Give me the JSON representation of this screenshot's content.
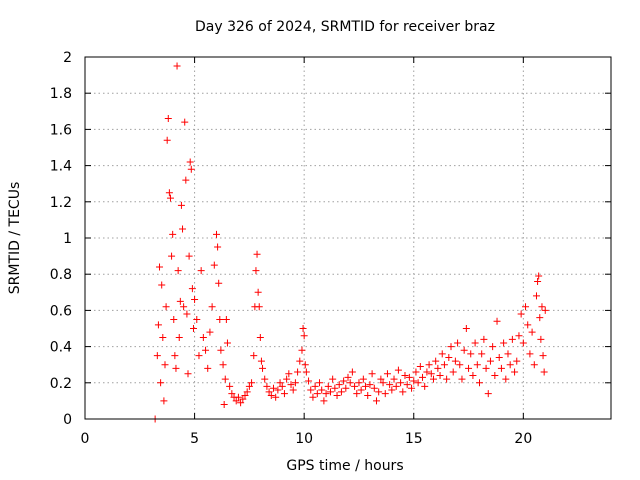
{
  "chart_data": {
    "type": "scatter",
    "title": "Day 326 of 2024, SRMTID for receiver braz",
    "xlabel": "GPS time / hours",
    "ylabel": "SRMTID / TECUs",
    "xlim": [
      0,
      24
    ],
    "ylim": [
      0,
      2
    ],
    "xticks": [
      0,
      5,
      10,
      15,
      20
    ],
    "xtick_labels": [
      "0",
      "5",
      "10",
      "15",
      "20"
    ],
    "yticks": [
      0,
      0.2,
      0.4,
      0.6,
      0.8,
      1,
      1.2,
      1.4,
      1.6,
      1.8,
      2
    ],
    "ytick_labels": [
      "0",
      "0.2",
      "0.4",
      "0.6",
      "0.8",
      "1",
      "1.2",
      "1.4",
      "1.6",
      "1.8",
      "2"
    ],
    "grid": true,
    "marker": "plus",
    "color": "#ff0000",
    "series": [
      {
        "name": "SRMTID",
        "points": [
          [
            3.2,
            0.0
          ],
          [
            3.3,
            0.35
          ],
          [
            3.35,
            0.52
          ],
          [
            3.4,
            0.84
          ],
          [
            3.45,
            0.2
          ],
          [
            3.5,
            0.74
          ],
          [
            3.55,
            0.45
          ],
          [
            3.6,
            0.1
          ],
          [
            3.65,
            0.3
          ],
          [
            3.7,
            0.62
          ],
          [
            3.75,
            1.54
          ],
          [
            3.8,
            1.66
          ],
          [
            3.85,
            1.25
          ],
          [
            3.9,
            1.22
          ],
          [
            3.95,
            0.9
          ],
          [
            4.0,
            1.02
          ],
          [
            4.05,
            0.55
          ],
          [
            4.1,
            0.35
          ],
          [
            4.15,
            0.28
          ],
          [
            4.2,
            1.95
          ],
          [
            4.25,
            0.82
          ],
          [
            4.3,
            0.45
          ],
          [
            4.35,
            0.65
          ],
          [
            4.4,
            1.18
          ],
          [
            4.45,
            1.05
          ],
          [
            4.5,
            0.62
          ],
          [
            4.55,
            1.64
          ],
          [
            4.6,
            1.32
          ],
          [
            4.65,
            0.58
          ],
          [
            4.7,
            0.25
          ],
          [
            4.75,
            0.9
          ],
          [
            4.8,
            1.42
          ],
          [
            4.85,
            1.38
          ],
          [
            4.9,
            0.72
          ],
          [
            4.95,
            0.5
          ],
          [
            5.0,
            0.66
          ],
          [
            5.1,
            0.55
          ],
          [
            5.2,
            0.35
          ],
          [
            5.3,
            0.82
          ],
          [
            5.4,
            0.45
          ],
          [
            5.5,
            0.38
          ],
          [
            5.6,
            0.28
          ],
          [
            5.7,
            0.48
          ],
          [
            5.8,
            0.62
          ],
          [
            5.9,
            0.85
          ],
          [
            6.0,
            1.02
          ],
          [
            6.05,
            0.95
          ],
          [
            6.1,
            0.75
          ],
          [
            6.15,
            0.55
          ],
          [
            6.2,
            0.38
          ],
          [
            6.3,
            0.3
          ],
          [
            6.35,
            0.08
          ],
          [
            6.4,
            0.22
          ],
          [
            6.45,
            0.55
          ],
          [
            6.5,
            0.42
          ],
          [
            6.6,
            0.18
          ],
          [
            6.7,
            0.14
          ],
          [
            6.8,
            0.12
          ],
          [
            6.9,
            0.1
          ],
          [
            7.0,
            0.12
          ],
          [
            7.1,
            0.09
          ],
          [
            7.2,
            0.11
          ],
          [
            7.3,
            0.13
          ],
          [
            7.4,
            0.15
          ],
          [
            7.5,
            0.18
          ],
          [
            7.6,
            0.2
          ],
          [
            7.7,
            0.35
          ],
          [
            7.75,
            0.62
          ],
          [
            7.8,
            0.82
          ],
          [
            7.85,
            0.91
          ],
          [
            7.9,
            0.7
          ],
          [
            7.95,
            0.62
          ],
          [
            8.0,
            0.45
          ],
          [
            8.05,
            0.32
          ],
          [
            8.1,
            0.28
          ],
          [
            8.2,
            0.22
          ],
          [
            8.3,
            0.18
          ],
          [
            8.4,
            0.15
          ],
          [
            8.5,
            0.13
          ],
          [
            8.6,
            0.17
          ],
          [
            8.7,
            0.12
          ],
          [
            8.8,
            0.16
          ],
          [
            8.9,
            0.2
          ],
          [
            9.0,
            0.18
          ],
          [
            9.1,
            0.14
          ],
          [
            9.2,
            0.22
          ],
          [
            9.3,
            0.25
          ],
          [
            9.4,
            0.19
          ],
          [
            9.5,
            0.16
          ],
          [
            9.6,
            0.2
          ],
          [
            9.7,
            0.26
          ],
          [
            9.8,
            0.32
          ],
          [
            9.9,
            0.38
          ],
          [
            9.95,
            0.5
          ],
          [
            10.0,
            0.46
          ],
          [
            10.05,
            0.3
          ],
          [
            10.1,
            0.26
          ],
          [
            10.2,
            0.21
          ],
          [
            10.3,
            0.16
          ],
          [
            10.4,
            0.12
          ],
          [
            10.5,
            0.18
          ],
          [
            10.6,
            0.14
          ],
          [
            10.7,
            0.2
          ],
          [
            10.8,
            0.16
          ],
          [
            10.9,
            0.1
          ],
          [
            11.0,
            0.14
          ],
          [
            11.1,
            0.18
          ],
          [
            11.2,
            0.15
          ],
          [
            11.3,
            0.22
          ],
          [
            11.4,
            0.17
          ],
          [
            11.5,
            0.13
          ],
          [
            11.6,
            0.19
          ],
          [
            11.7,
            0.15
          ],
          [
            11.8,
            0.21
          ],
          [
            11.9,
            0.17
          ],
          [
            12.0,
            0.23
          ],
          [
            12.1,
            0.2
          ],
          [
            12.2,
            0.26
          ],
          [
            12.3,
            0.18
          ],
          [
            12.4,
            0.14
          ],
          [
            12.5,
            0.2
          ],
          [
            12.6,
            0.16
          ],
          [
            12.7,
            0.22
          ],
          [
            12.8,
            0.18
          ],
          [
            12.9,
            0.13
          ],
          [
            13.0,
            0.19
          ],
          [
            13.1,
            0.25
          ],
          [
            13.2,
            0.17
          ],
          [
            13.3,
            0.1
          ],
          [
            13.4,
            0.15
          ],
          [
            13.5,
            0.22
          ],
          [
            13.6,
            0.2
          ],
          [
            13.7,
            0.14
          ],
          [
            13.8,
            0.25
          ],
          [
            13.9,
            0.19
          ],
          [
            14.0,
            0.16
          ],
          [
            14.1,
            0.22
          ],
          [
            14.2,
            0.18
          ],
          [
            14.3,
            0.27
          ],
          [
            14.4,
            0.2
          ],
          [
            14.5,
            0.15
          ],
          [
            14.6,
            0.24
          ],
          [
            14.7,
            0.19
          ],
          [
            14.8,
            0.23
          ],
          [
            14.9,
            0.17
          ],
          [
            15.0,
            0.21
          ],
          [
            15.1,
            0.26
          ],
          [
            15.2,
            0.2
          ],
          [
            15.3,
            0.29
          ],
          [
            15.4,
            0.23
          ],
          [
            15.5,
            0.18
          ],
          [
            15.6,
            0.26
          ],
          [
            15.7,
            0.3
          ],
          [
            15.8,
            0.25
          ],
          [
            15.9,
            0.22
          ],
          [
            16.0,
            0.32
          ],
          [
            16.1,
            0.28
          ],
          [
            16.2,
            0.24
          ],
          [
            16.3,
            0.36
          ],
          [
            16.4,
            0.3
          ],
          [
            16.5,
            0.22
          ],
          [
            16.6,
            0.34
          ],
          [
            16.7,
            0.4
          ],
          [
            16.8,
            0.26
          ],
          [
            16.9,
            0.32
          ],
          [
            17.0,
            0.42
          ],
          [
            17.1,
            0.3
          ],
          [
            17.2,
            0.22
          ],
          [
            17.3,
            0.38
          ],
          [
            17.4,
            0.5
          ],
          [
            17.5,
            0.28
          ],
          [
            17.6,
            0.36
          ],
          [
            17.7,
            0.24
          ],
          [
            17.8,
            0.42
          ],
          [
            17.9,
            0.3
          ],
          [
            18.0,
            0.2
          ],
          [
            18.1,
            0.36
          ],
          [
            18.2,
            0.44
          ],
          [
            18.3,
            0.28
          ],
          [
            18.4,
            0.14
          ],
          [
            18.5,
            0.32
          ],
          [
            18.6,
            0.4
          ],
          [
            18.7,
            0.24
          ],
          [
            18.8,
            0.54
          ],
          [
            18.9,
            0.34
          ],
          [
            19.0,
            0.28
          ],
          [
            19.1,
            0.42
          ],
          [
            19.2,
            0.22
          ],
          [
            19.3,
            0.36
          ],
          [
            19.4,
            0.3
          ],
          [
            19.5,
            0.44
          ],
          [
            19.6,
            0.26
          ],
          [
            19.7,
            0.32
          ],
          [
            19.8,
            0.46
          ],
          [
            19.9,
            0.58
          ],
          [
            20.0,
            0.42
          ],
          [
            20.1,
            0.62
          ],
          [
            20.2,
            0.52
          ],
          [
            20.3,
            0.36
          ],
          [
            20.4,
            0.48
          ],
          [
            20.5,
            0.3
          ],
          [
            20.6,
            0.68
          ],
          [
            20.65,
            0.76
          ],
          [
            20.7,
            0.79
          ],
          [
            20.75,
            0.56
          ],
          [
            20.8,
            0.44
          ],
          [
            20.85,
            0.62
          ],
          [
            20.9,
            0.35
          ],
          [
            20.95,
            0.26
          ],
          [
            21.0,
            0.6
          ]
        ]
      }
    ]
  }
}
